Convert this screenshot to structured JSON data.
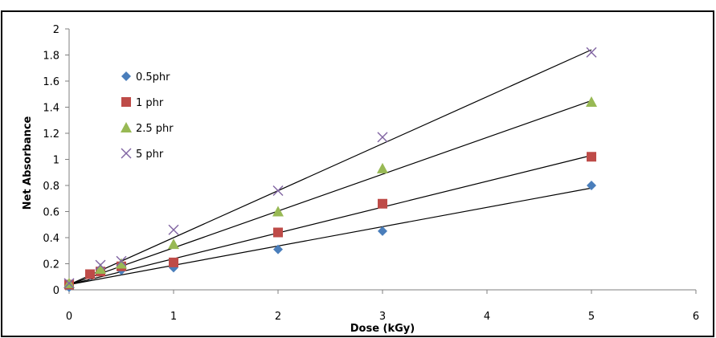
{
  "chart_data": {
    "type": "scatter",
    "title": "",
    "xlabel": "Dose (kGy)",
    "ylabel": "Net Absorbance",
    "xlim": [
      0,
      6
    ],
    "ylim": [
      0,
      2
    ],
    "xticks": [
      0,
      1,
      2,
      3,
      4,
      5,
      6
    ],
    "yticks": [
      0,
      0.2,
      0.4,
      0.6,
      0.8,
      1,
      1.2,
      1.4,
      1.6,
      1.8,
      2
    ],
    "xtick_labels": [
      "0",
      "1",
      "2",
      "3",
      "4",
      "5",
      "6"
    ],
    "ytick_labels": [
      "0",
      "0.2",
      "0.4",
      "0.6",
      "0.8",
      "1",
      "1.2",
      "1.4",
      "1.6",
      "1.8",
      "2"
    ],
    "grid": false,
    "legend_position": "top-left",
    "series": [
      {
        "name": "0.5phr",
        "marker": "diamond",
        "color": "#4a7ebb",
        "x": [
          0,
          0.2,
          0.5,
          1,
          2,
          3,
          5
        ],
        "y": [
          0.02,
          0.11,
          0.15,
          0.17,
          0.31,
          0.45,
          0.8
        ],
        "trendline": [
          [
            0,
            0.04
          ],
          [
            5,
            0.78
          ]
        ]
      },
      {
        "name": "1 phr",
        "marker": "square",
        "color": "#be4b48",
        "x": [
          0,
          0.2,
          0.3,
          0.5,
          1,
          2,
          3,
          5
        ],
        "y": [
          0.04,
          0.12,
          0.14,
          0.18,
          0.21,
          0.44,
          0.66,
          1.02
        ],
        "trendline": [
          [
            0,
            0.04
          ],
          [
            5,
            1.03
          ]
        ]
      },
      {
        "name": "2.5 phr",
        "marker": "triangle",
        "color": "#98b954",
        "x": [
          0,
          0.3,
          0.5,
          1,
          2,
          3,
          5
        ],
        "y": [
          0.05,
          0.16,
          0.2,
          0.35,
          0.6,
          0.93,
          1.44
        ],
        "trendline": [
          [
            0,
            0.04
          ],
          [
            5,
            1.45
          ]
        ]
      },
      {
        "name": "5 phr",
        "marker": "x",
        "color": "#8064a2",
        "x": [
          0,
          0.3,
          0.5,
          1,
          2,
          3,
          5
        ],
        "y": [
          0.05,
          0.19,
          0.22,
          0.46,
          0.76,
          1.17,
          1.82
        ],
        "trendline": [
          [
            0,
            0.04
          ],
          [
            5,
            1.84
          ]
        ]
      }
    ]
  }
}
